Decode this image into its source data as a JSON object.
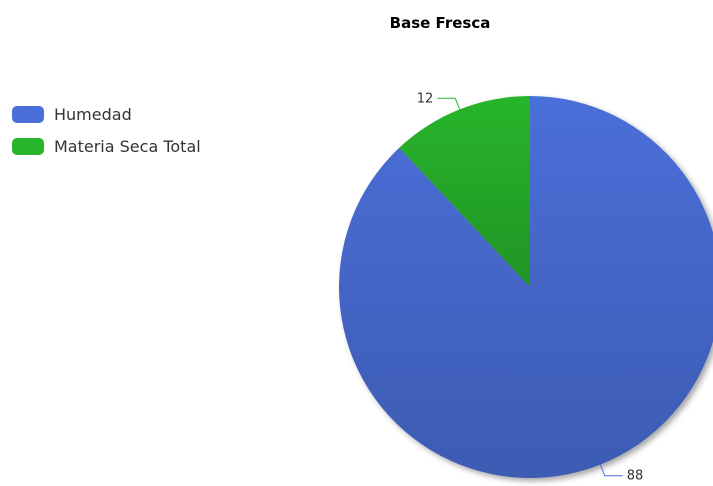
{
  "chart_data": {
    "type": "pie",
    "title": "Base Fresca",
    "legend_placement": "top-left",
    "categories": [
      "Humedad",
      "Materia Seca Total"
    ],
    "values": [
      88,
      12
    ],
    "colors": [
      "#4a6fd9",
      "#28b52c"
    ],
    "data_labels": [
      "88",
      "12"
    ]
  }
}
